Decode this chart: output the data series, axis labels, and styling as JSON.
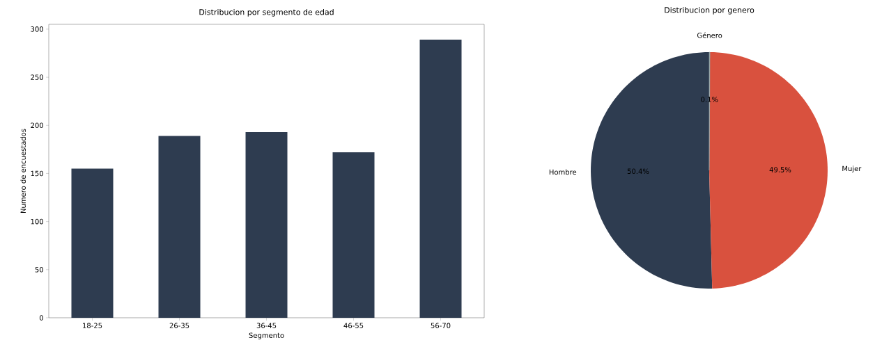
{
  "chart_data": [
    {
      "type": "bar",
      "title": "Distribucion por segmento de edad",
      "xlabel": "Segmento",
      "ylabel": "Numero de encuestados",
      "categories": [
        "18-25",
        "26-35",
        "36-45",
        "46-55",
        "56-70"
      ],
      "values": [
        155,
        189,
        193,
        172,
        289
      ],
      "color": "#2e3c50",
      "ylim": [
        0,
        305
      ],
      "yticks": [
        0,
        50,
        100,
        150,
        200,
        250,
        300
      ]
    },
    {
      "type": "pie",
      "title": "Distribucion por genero",
      "categories": [
        "Hombre",
        "Mujer",
        "Género"
      ],
      "values": [
        50.4,
        49.5,
        0.1
      ],
      "colors": [
        "#2e3c50",
        "#d9513e",
        "#95a5a6"
      ],
      "value_labels": [
        "50.4%",
        "49.5%",
        "0.1%"
      ]
    }
  ]
}
